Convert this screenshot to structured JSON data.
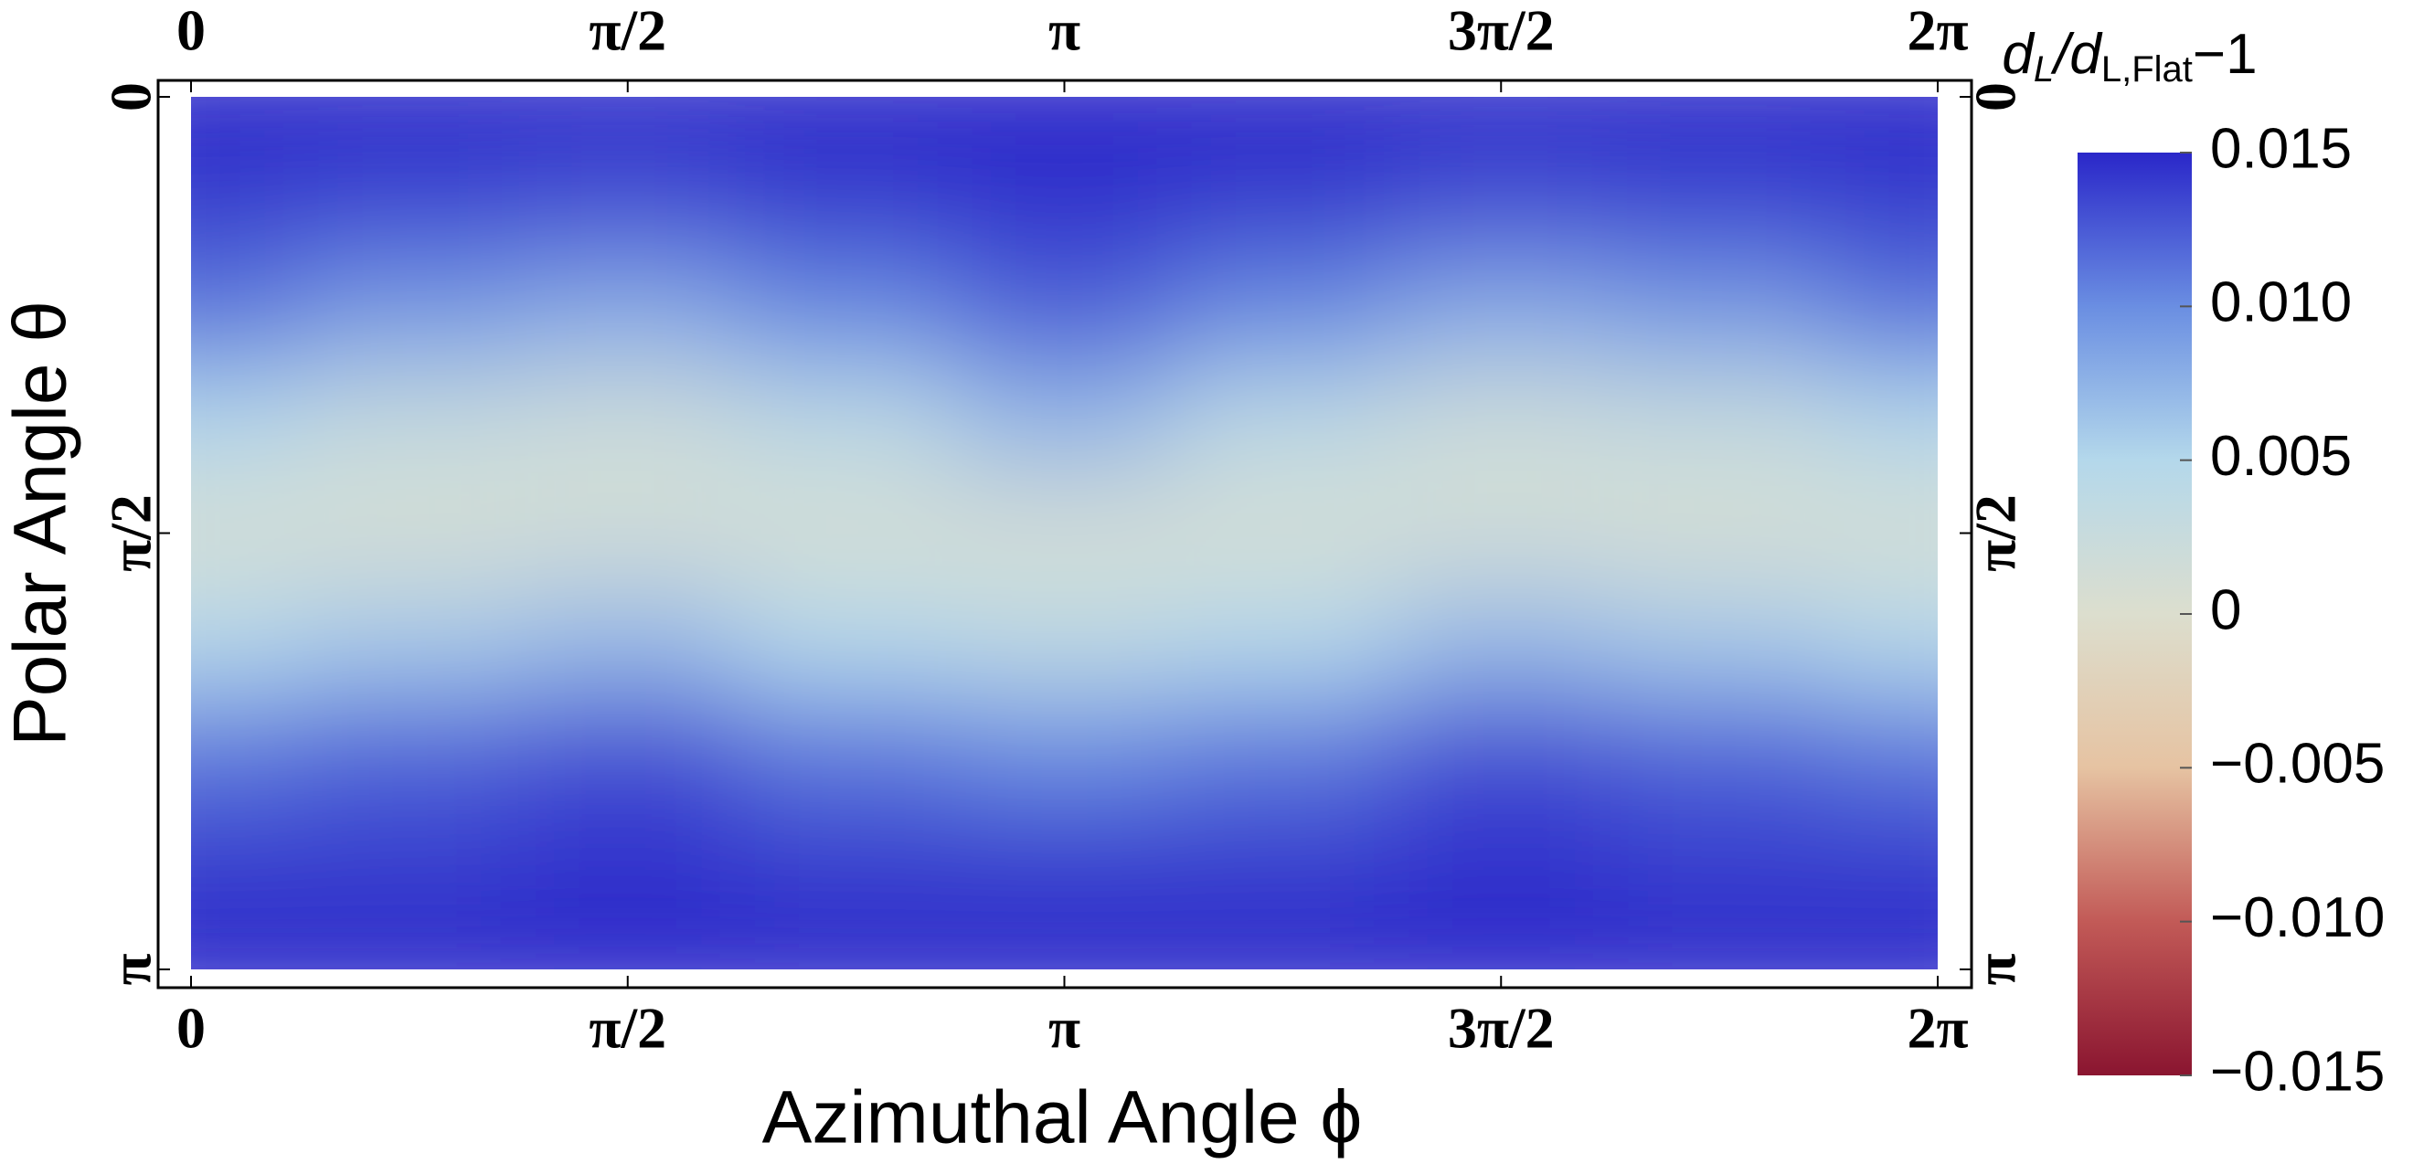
{
  "chart_data": {
    "type": "heatmap",
    "x_label": "Azimuthal Angle ϕ",
    "y_label": "Polar Angle θ",
    "colorbar_title": [
      "d",
      "L",
      "/d",
      "L,Flat",
      "−1"
    ],
    "x": [
      0,
      0.7854,
      1.5708,
      2.3562,
      3.1416,
      3.927,
      4.7124,
      5.4978,
      6.2832
    ],
    "y": [
      0,
      0.3927,
      0.7854,
      1.1781,
      1.5708,
      1.9635,
      2.3562,
      2.7489,
      3.1416
    ],
    "z": [
      [
        0.015,
        0.015,
        0.015,
        0.015,
        0.015,
        0.015,
        0.015,
        0.015,
        0.015
      ],
      [
        0.014,
        0.0135,
        0.013,
        0.014,
        0.0145,
        0.014,
        0.013,
        0.0135,
        0.014
      ],
      [
        0.011,
        0.009,
        0.008,
        0.01,
        0.012,
        0.01,
        0.008,
        0.009,
        0.011
      ],
      [
        0.005,
        0.003,
        0.002,
        0.004,
        0.007,
        0.004,
        0.002,
        0.003,
        0.005
      ],
      [
        0.001,
        0.001,
        0.0015,
        0.001,
        0.001,
        0.001,
        0.0015,
        0.001,
        0.001
      ],
      [
        0.005,
        0.006,
        0.007,
        0.005,
        0.004,
        0.005,
        0.007,
        0.006,
        0.005
      ],
      [
        0.011,
        0.012,
        0.013,
        0.011,
        0.01,
        0.011,
        0.013,
        0.012,
        0.011
      ],
      [
        0.014,
        0.014,
        0.0145,
        0.014,
        0.014,
        0.014,
        0.0145,
        0.014,
        0.014
      ],
      [
        0.015,
        0.015,
        0.015,
        0.015,
        0.015,
        0.015,
        0.015,
        0.015,
        0.015
      ]
    ],
    "xlim": [
      0,
      6.2832
    ],
    "ylim": [
      0,
      3.1416
    ],
    "xticks": [
      0,
      {
        "value": 1.5708,
        "label": "π/2"
      },
      {
        "value": 3.1416,
        "label": "π"
      },
      {
        "value": 4.7124,
        "label": "3π/2"
      },
      {
        "value": 6.2832,
        "label": "2π"
      }
    ],
    "yticks": [
      0,
      {
        "value": 1.5708,
        "label": "π/2"
      },
      {
        "value": 3.1416,
        "label": "π"
      }
    ],
    "zlim": [
      -0.015,
      0.015
    ],
    "zticks": [
      0.015,
      {
        "value": 0.01,
        "label": "0.010"
      },
      0.005,
      0,
      {
        "value": -0.005,
        "label": "−0.005"
      },
      {
        "value": -0.01,
        "label": "−0.010"
      },
      {
        "value": -0.015,
        "label": "−0.015"
      }
    ],
    "colors": [
      "#8a1530",
      "#c25a57",
      "#e6c3a2",
      "#dcdece",
      "#b4d8eb",
      "#6a8ee2",
      "#2a27c9"
    ]
  }
}
